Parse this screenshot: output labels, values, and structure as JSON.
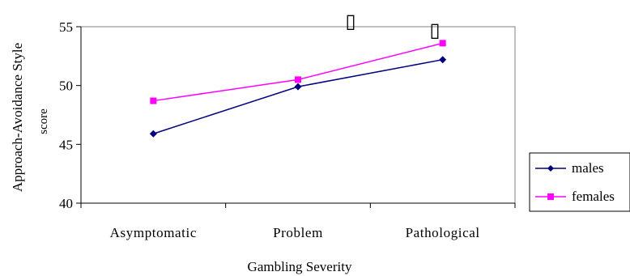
{
  "chart_data": {
    "type": "line",
    "categories": [
      "Asymptomatic",
      "Problem",
      "Pathological"
    ],
    "series": [
      {
        "name": "males",
        "values": [
          45.9,
          49.9,
          52.2
        ],
        "color": "#000080",
        "marker": "diamond"
      },
      {
        "name": "females",
        "values": [
          48.7,
          50.5,
          53.6
        ],
        "color": "#ff00ff",
        "marker": "square"
      }
    ],
    "ylim": [
      40,
      55
    ],
    "yticks": [
      40,
      45,
      50,
      55
    ],
    "ylabel_line1": "Approach-Avoidance Style",
    "ylabel_line2": "score",
    "xlabel": "Gambling Severity",
    "legend": "right",
    "grid": false,
    "glyphs": [
      "▯",
      "▯"
    ]
  }
}
